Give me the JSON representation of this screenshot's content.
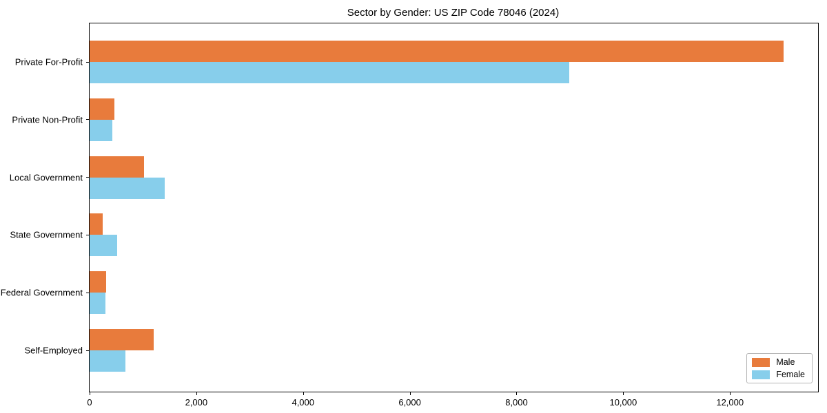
{
  "chart_data": {
    "type": "bar",
    "orientation": "horizontal",
    "title": "Sector by Gender: US ZIP Code 78046 (2024)",
    "categories": [
      "Private For-Profit",
      "Private Non-Profit",
      "Local Government",
      "State Government",
      "Federal Government",
      "Self-Employed"
    ],
    "series": [
      {
        "name": "Male",
        "color": "#e87b3c",
        "values": [
          13000,
          470,
          1020,
          240,
          315,
          1200
        ]
      },
      {
        "name": "Female",
        "color": "#87ceeb",
        "values": [
          8990,
          420,
          1410,
          520,
          295,
          670
        ]
      }
    ],
    "xlabel": "",
    "ylabel": "",
    "xlim": [
      0,
      13650
    ],
    "xticks": [
      0,
      2000,
      4000,
      6000,
      8000,
      10000,
      12000
    ],
    "xtick_labels": [
      "0",
      "2,000",
      "4,000",
      "6,000",
      "8,000",
      "10,000",
      "12,000"
    ],
    "grid": false,
    "legend": {
      "position": "lower right",
      "entries": [
        "Male",
        "Female"
      ]
    }
  }
}
